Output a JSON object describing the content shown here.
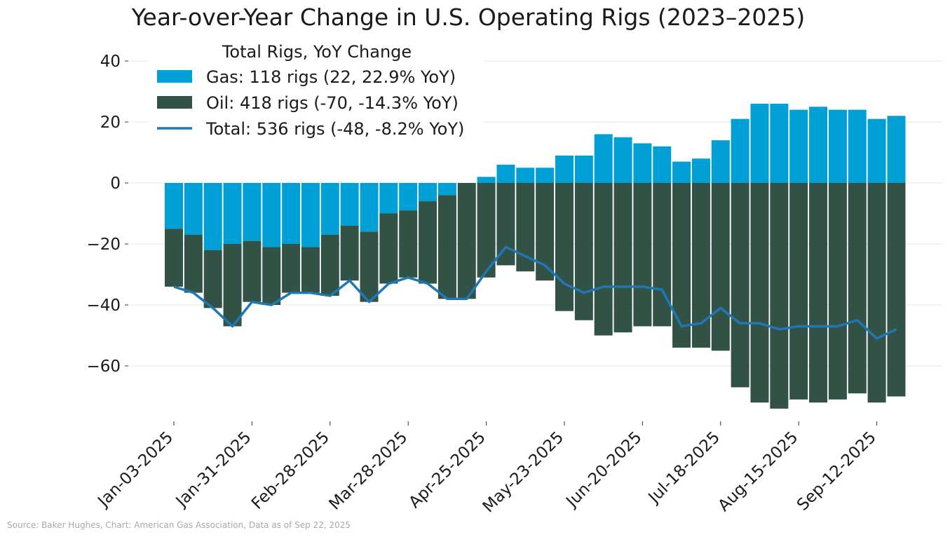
{
  "chart_data": {
    "type": "bar",
    "stacked": true,
    "title": "Year-over-Year Change in U.S. Operating Rigs (2023–2025)",
    "xlabel": "",
    "ylabel": "",
    "ylim": [
      -78,
      44
    ],
    "yticks": [
      -60,
      -40,
      -20,
      0,
      20,
      40
    ],
    "ytick_labels": [
      "−60",
      "−40",
      "−20",
      "0",
      "20",
      "40"
    ],
    "grid": true,
    "x": [
      "2025-01-03",
      "2025-01-10",
      "2025-01-17",
      "2025-01-24",
      "2025-01-31",
      "2025-02-07",
      "2025-02-14",
      "2025-02-21",
      "2025-02-28",
      "2025-03-07",
      "2025-03-14",
      "2025-03-21",
      "2025-03-28",
      "2025-04-04",
      "2025-04-11",
      "2025-04-18",
      "2025-04-25",
      "2025-05-02",
      "2025-05-09",
      "2025-05-16",
      "2025-05-23",
      "2025-05-30",
      "2025-06-06",
      "2025-06-13",
      "2025-06-20",
      "2025-06-27",
      "2025-07-04",
      "2025-07-11",
      "2025-07-18",
      "2025-07-25",
      "2025-08-01",
      "2025-08-08",
      "2025-08-15",
      "2025-08-22",
      "2025-08-29",
      "2025-09-05",
      "2025-09-12",
      "2025-09-19"
    ],
    "xtick_labels": [
      "Jan-03-2025",
      "Jan-31-2025",
      "Feb-28-2025",
      "Mar-28-2025",
      "Apr-25-2025",
      "May-23-2025",
      "Jun-20-2025",
      "Jul-18-2025",
      "Aug-15-2025",
      "Sep-12-2025"
    ],
    "xtick_index": [
      0,
      4,
      8,
      12,
      16,
      20,
      24,
      28,
      32,
      36
    ],
    "series": [
      {
        "name": "Gas: 118 rigs (22, 22.9% YoY)",
        "type": "bar",
        "color": "#00a0d7",
        "values": [
          -15,
          -17,
          -22,
          -20,
          -19,
          -21,
          -20,
          -21,
          -17,
          -14,
          -16,
          -10,
          -9,
          -6,
          -4,
          0,
          2,
          6,
          5,
          5,
          9,
          9,
          16,
          15,
          13,
          12,
          7,
          8,
          14,
          21,
          26,
          26,
          24,
          25,
          24,
          24,
          21,
          22
        ]
      },
      {
        "name": "Oil: 418 rigs (-70, -14.3% YoY)",
        "type": "bar",
        "color": "#325246",
        "values": [
          -19,
          -19,
          -19,
          -27,
          -20,
          -19,
          -16,
          -15,
          -20,
          -18,
          -23,
          -23,
          -22,
          -27,
          -34,
          -38,
          -31,
          -27,
          -29,
          -32,
          -42,
          -45,
          -50,
          -49,
          -47,
          -47,
          -54,
          -54,
          -55,
          -67,
          -72,
          -74,
          -71,
          -72,
          -71,
          -69,
          -72,
          -70
        ]
      },
      {
        "name": "Total: 536 rigs (-48, -8.2% YoY)",
        "type": "line",
        "color": "#1f77b4",
        "values": [
          -34,
          -36,
          -41,
          -47,
          -39,
          -40,
          -36,
          -36,
          -37,
          -32,
          -39,
          -33,
          -31,
          -33,
          -38,
          -38,
          -29,
          -21,
          -24,
          -27,
          -33,
          -36,
          -34,
          -34,
          -34,
          -35,
          -47,
          -46,
          -41,
          -46,
          -46,
          -48,
          -47,
          -47,
          -47,
          -45,
          -51,
          -48
        ]
      }
    ],
    "legend": {
      "title": "Total Rigs, YoY Change",
      "position": "upper-left"
    },
    "source": "Source: Baker Hughes, Chart: American Gas Association, Data as of Sep 22, 2025"
  }
}
